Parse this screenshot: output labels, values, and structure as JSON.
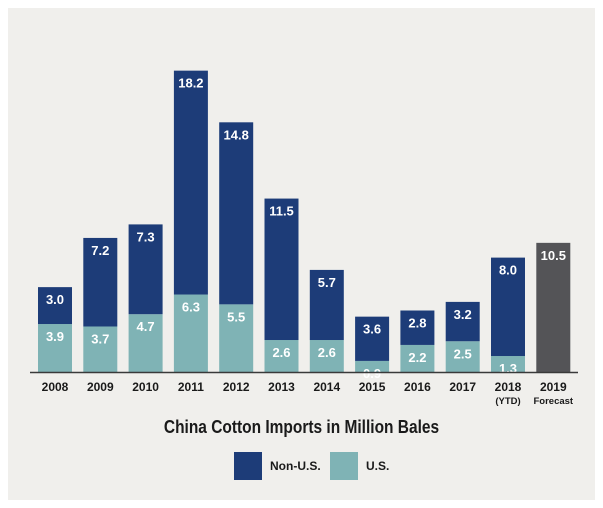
{
  "chart_data": {
    "type": "bar",
    "stacked": true,
    "title": "China Cotton Imports in Million Bales",
    "categories": [
      "2008",
      "2009",
      "2010",
      "2011",
      "2012",
      "2013",
      "2014",
      "2015",
      "2016",
      "2017",
      "2018",
      "2019"
    ],
    "category_sublabels": [
      "",
      "",
      "",
      "",
      "",
      "",
      "",
      "",
      "",
      "",
      "(YTD)",
      "Forecast"
    ],
    "series": [
      {
        "name": "U.S.",
        "color": "#7fb3b5",
        "values": [
          3.9,
          3.7,
          4.7,
          6.3,
          5.5,
          2.6,
          2.6,
          0.9,
          2.2,
          2.5,
          1.3,
          null
        ]
      },
      {
        "name": "Non-U.S.",
        "color": "#1d3c78",
        "values": [
          3.0,
          7.2,
          7.3,
          18.2,
          14.8,
          11.5,
          5.7,
          3.6,
          2.8,
          3.2,
          8.0,
          null
        ]
      }
    ],
    "forecast": {
      "category": "2019",
      "value": 10.5,
      "color": "#545457"
    },
    "ylim": [
      0,
      25
    ],
    "legend_position": "bottom-center",
    "grid": false
  },
  "legend": [
    {
      "label": "Non-U.S.",
      "color": "#1d3c78"
    },
    {
      "label": "U.S.",
      "color": "#7fb3b5"
    }
  ]
}
